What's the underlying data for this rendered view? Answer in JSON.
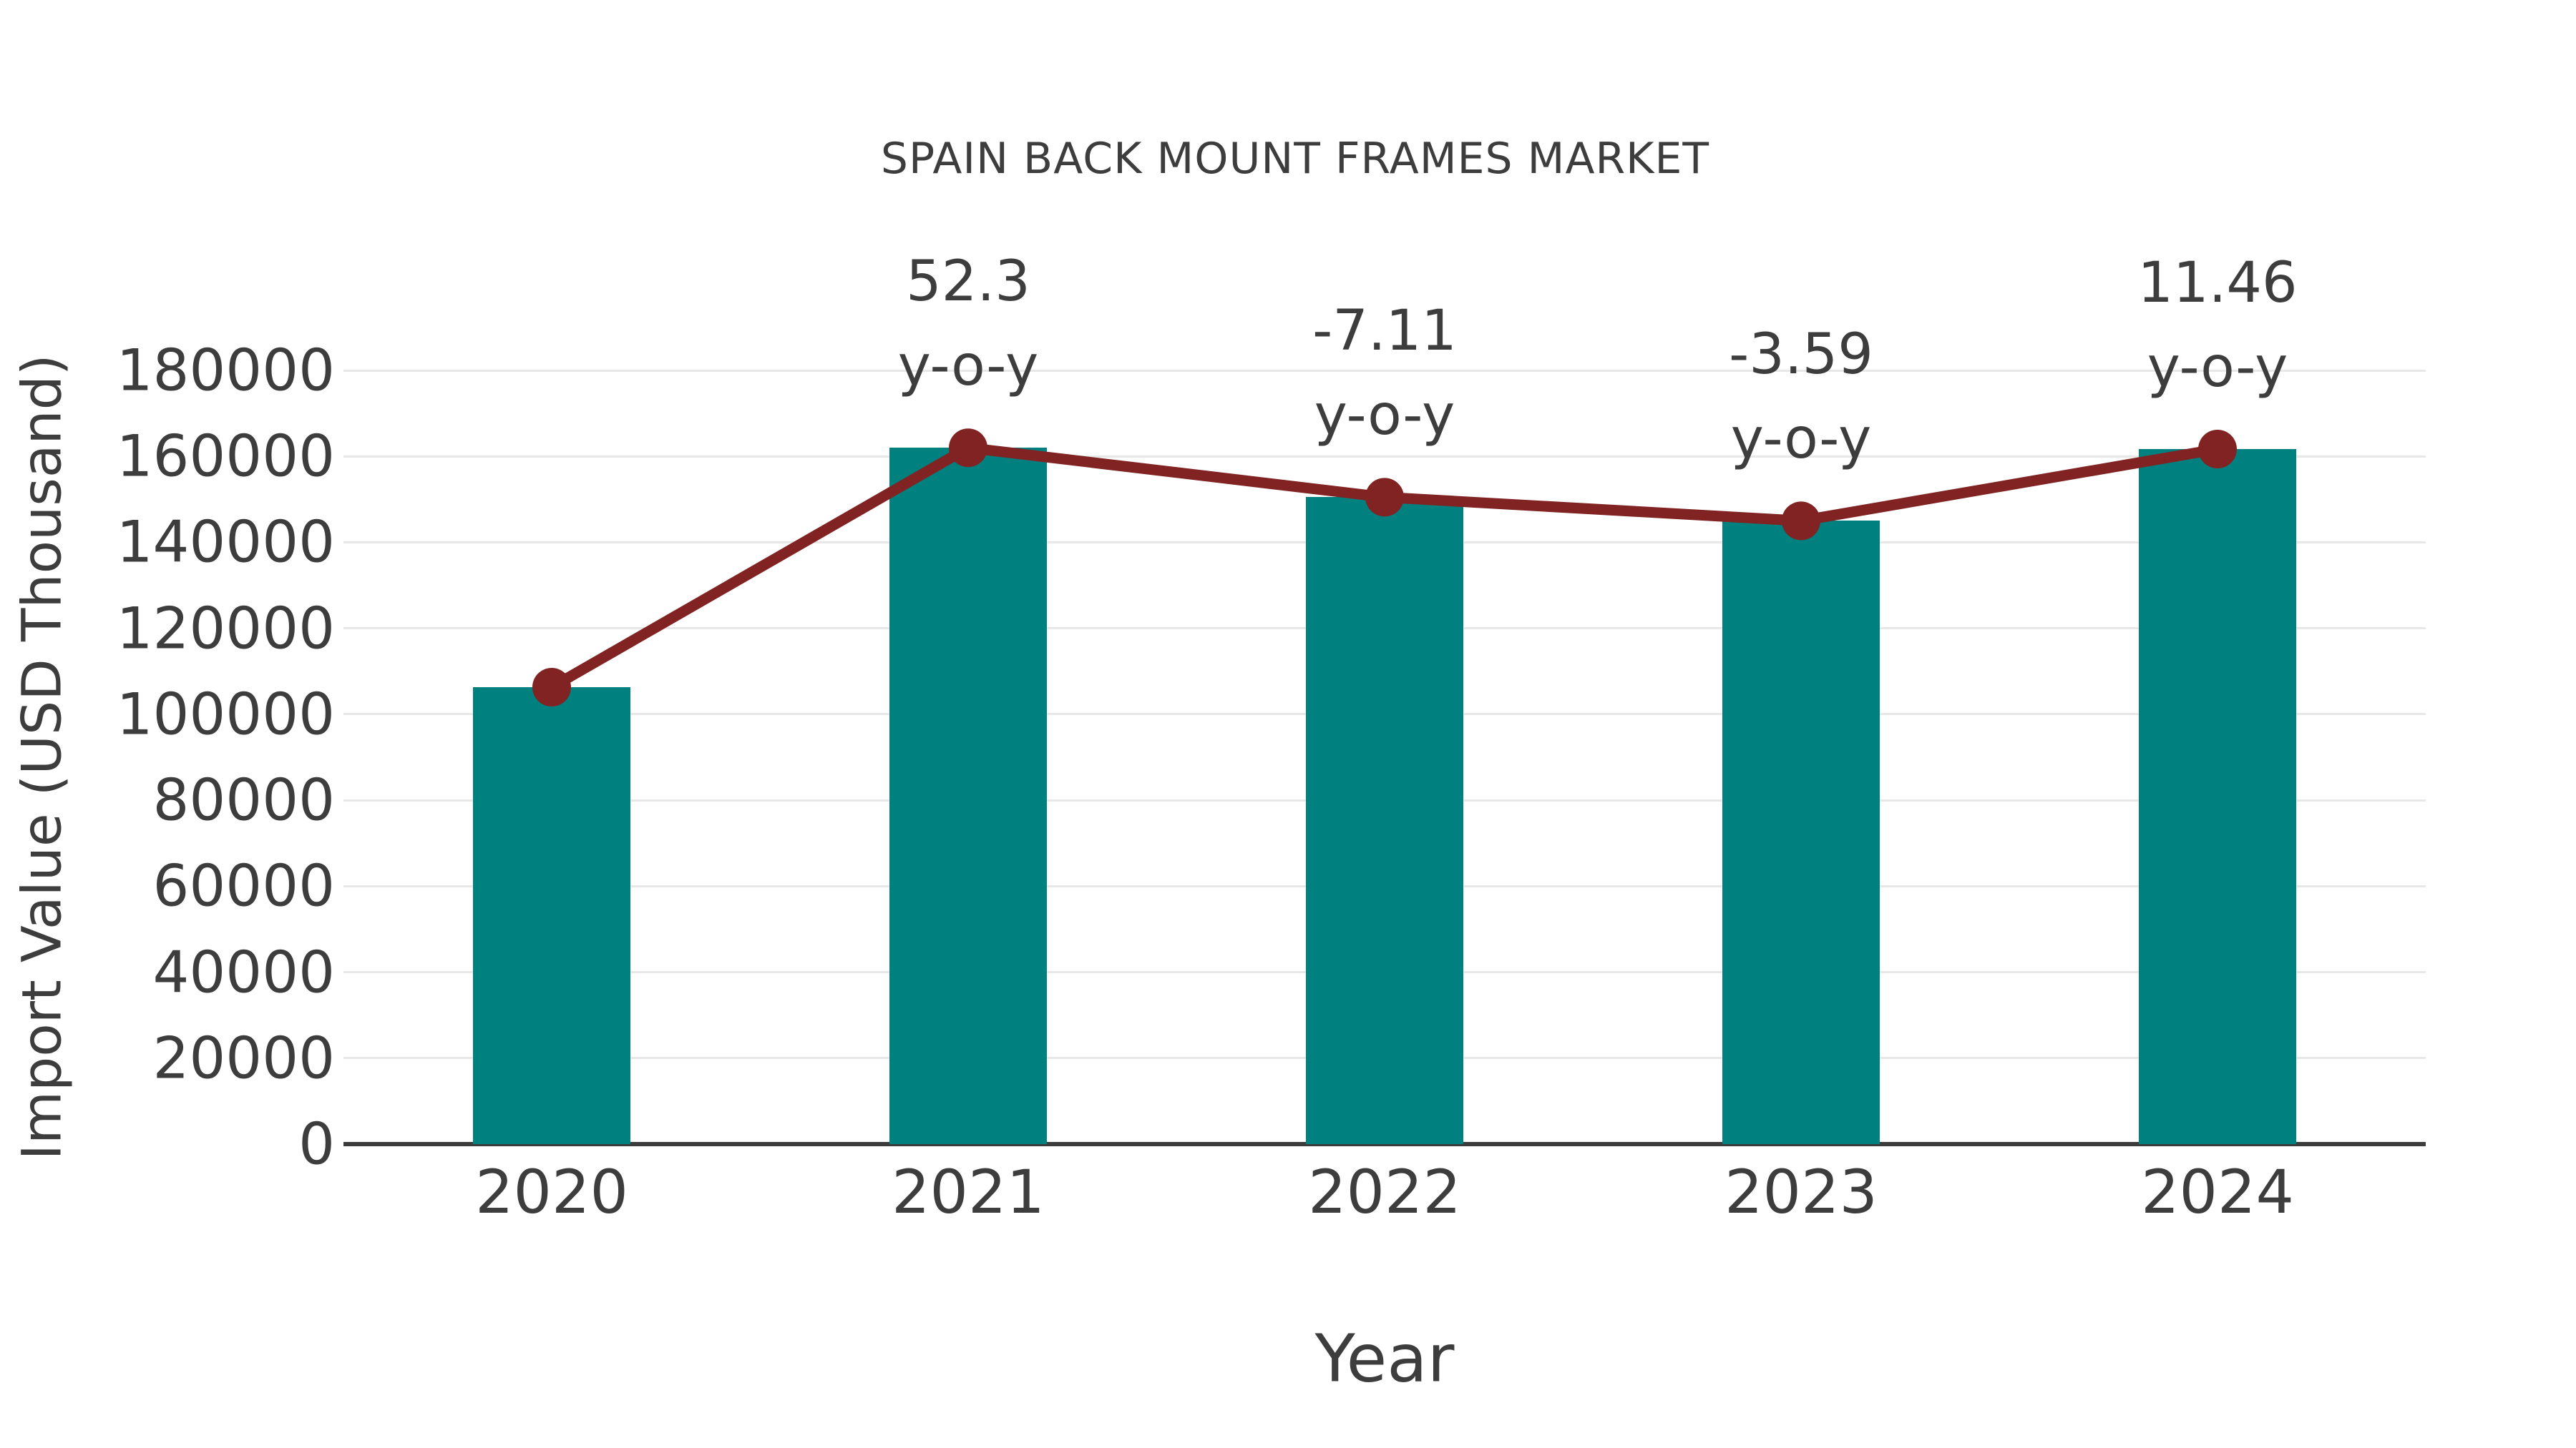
{
  "chart_data": {
    "type": "bar",
    "title": "SPAIN BACK MOUNT FRAMES MARKET",
    "xlabel": "Year",
    "ylabel": "Import Value (USD Thousand)",
    "categories": [
      "2020",
      "2021",
      "2022",
      "2023",
      "2024"
    ],
    "series": [
      {
        "name": "Import Value bars",
        "type": "bar",
        "color": "#00807e",
        "values": [
          106300,
          162000,
          150500,
          145000,
          161700
        ]
      },
      {
        "name": "Import Value trend line",
        "type": "line",
        "color": "#802322",
        "values": [
          106300,
          162000,
          150500,
          145000,
          161700
        ]
      }
    ],
    "annotations": [
      {
        "category": "2021",
        "value_label": "52.3",
        "suffix_label": "y-o-y"
      },
      {
        "category": "2022",
        "value_label": "-7.11",
        "suffix_label": "y-o-y"
      },
      {
        "category": "2023",
        "value_label": "-3.59",
        "suffix_label": "y-o-y"
      },
      {
        "category": "2024",
        "value_label": "11.46",
        "suffix_label": "y-o-y"
      }
    ],
    "ylim": [
      0,
      180000
    ],
    "yticks": [
      0,
      20000,
      40000,
      60000,
      80000,
      100000,
      120000,
      140000,
      160000,
      180000
    ],
    "grid": "horizontal-light",
    "legend": "none",
    "colors": {
      "bar": "#00807e",
      "line": "#802322",
      "grid": "#e8e8e8",
      "axis": "#3c3c3c",
      "text": "#3d3d3d",
      "background": "#ffffff"
    }
  }
}
